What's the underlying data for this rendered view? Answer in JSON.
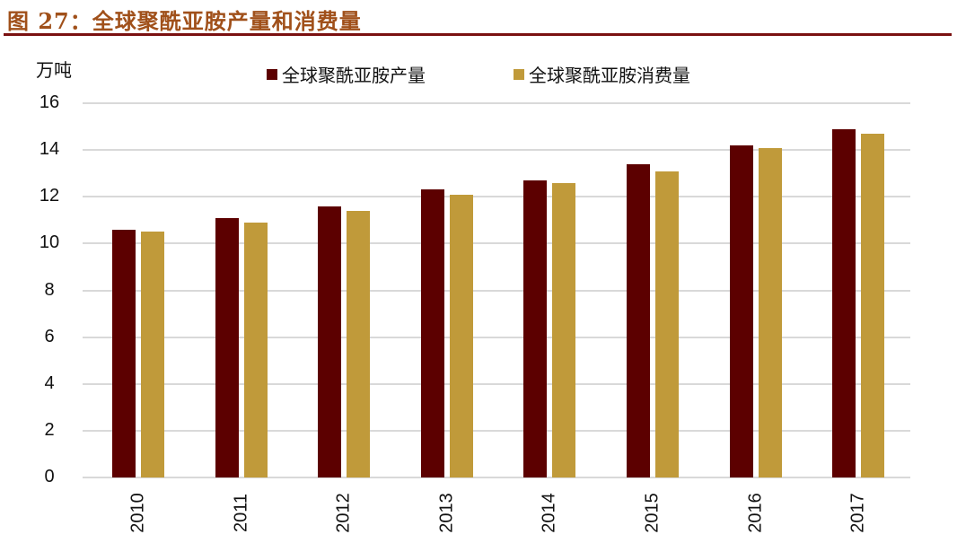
{
  "header": {
    "figure_label": "图 27：",
    "title": "全球聚酰亚胺产量和消费量"
  },
  "colors": {
    "title": "#a0501a",
    "rule": "#7a1010",
    "production": "#5c0000",
    "consumption": "#c09a3a",
    "grid": "#d9d9d9"
  },
  "chart_data": {
    "type": "bar",
    "title": "全球聚酰亚胺产量和消费量",
    "xlabel": "",
    "ylabel": "万吨",
    "ylim": [
      0,
      16
    ],
    "yticks": [
      0,
      2,
      4,
      6,
      8,
      10,
      12,
      14,
      16
    ],
    "grid": true,
    "legend_position": "top",
    "categories": [
      "2010",
      "2011",
      "2012",
      "2013",
      "2014",
      "2015",
      "2016",
      "2017"
    ],
    "series": [
      {
        "name": "全球聚酰亚胺产量",
        "color": "#5c0000",
        "values": [
          10.6,
          11.1,
          11.6,
          12.3,
          12.7,
          13.4,
          14.2,
          14.9
        ]
      },
      {
        "name": "全球聚酰亚胺消费量",
        "color": "#c09a3a",
        "values": [
          10.5,
          10.9,
          11.4,
          12.1,
          12.6,
          13.1,
          14.1,
          14.7
        ]
      }
    ]
  }
}
